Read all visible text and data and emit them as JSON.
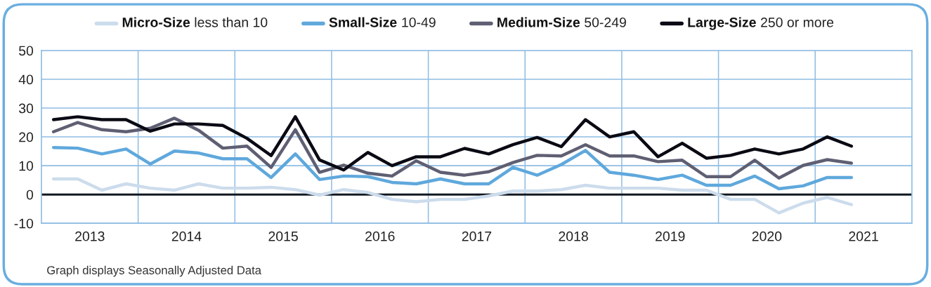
{
  "chart_data": {
    "type": "line",
    "x": [
      2013.125,
      2013.375,
      2013.625,
      2013.875,
      2014.125,
      2014.375,
      2014.625,
      2014.875,
      2015.125,
      2015.375,
      2015.625,
      2015.875,
      2016.125,
      2016.375,
      2016.625,
      2016.875,
      2017.125,
      2017.375,
      2017.625,
      2017.875,
      2018.125,
      2018.375,
      2018.625,
      2018.875,
      2019.125,
      2019.375,
      2019.625,
      2019.875,
      2020.125,
      2020.375,
      2020.625,
      2020.875,
      2021.125,
      2021.375
    ],
    "series": [
      {
        "name": "Micro-Size less than 10",
        "color": "#ccdcec",
        "values": [
          5.4,
          5.4,
          1.5,
          3.7,
          2.2,
          1.5,
          3.7,
          2.2,
          2.2,
          2.5,
          1.7,
          -0.2,
          1.7,
          0.7,
          -1.7,
          -2.5,
          -1.7,
          -1.7,
          -0.5,
          1.2,
          1.2,
          1.7,
          3.2,
          2.2,
          2.2,
          2.2,
          1.5,
          1.5,
          -1.7,
          -1.7,
          -6.4,
          -3.0,
          -1.0,
          -3.5
        ]
      },
      {
        "name": "Small-Size 10-49",
        "color": "#5fa8dc",
        "values": [
          16.3,
          16.1,
          14.1,
          15.8,
          10.6,
          15.1,
          14.4,
          12.4,
          12.4,
          5.9,
          14.1,
          5.2,
          6.4,
          6.2,
          4.2,
          3.7,
          5.4,
          3.7,
          3.7,
          9.4,
          6.7,
          10.4,
          15.3,
          7.7,
          6.7,
          5.2,
          6.7,
          3.2,
          3.2,
          6.4,
          2.0,
          3.0,
          5.9,
          5.9
        ]
      },
      {
        "name": "Medium-Size 50-249",
        "color": "#5f5f73",
        "values": [
          21.8,
          25,
          22.5,
          21.8,
          23,
          26.5,
          22.3,
          16.1,
          16.8,
          9.4,
          22.5,
          7.7,
          10.2,
          7.4,
          6.4,
          11.7,
          7.7,
          6.7,
          7.9,
          11.1,
          13.6,
          13.4,
          17.3,
          13.4,
          13.4,
          11.4,
          11.9,
          6.2,
          6.2,
          11.9,
          5.7,
          10.1,
          12.1,
          10.9
        ]
      },
      {
        "name": "Large-Size 250 or more",
        "color": "#0a0a14",
        "values": [
          26,
          27,
          26,
          26,
          22,
          24.5,
          24.5,
          24,
          19.5,
          13.5,
          27,
          12,
          8.5,
          14.6,
          10,
          13.1,
          13.1,
          16,
          14.1,
          17.3,
          19.8,
          16.6,
          26,
          20,
          21.8,
          13.1,
          17.8,
          12.6,
          13.6,
          15.8,
          14.1,
          15.8,
          20,
          16.8
        ]
      }
    ],
    "xlim": [
      2013,
      2022
    ],
    "xticks": [
      {
        "value": 2013.5,
        "label": "2013"
      },
      {
        "value": 2014,
        "label": null
      },
      {
        "value": 2014.5,
        "label": "2014"
      },
      {
        "value": 2015,
        "label": null
      },
      {
        "value": 2015.5,
        "label": "2015"
      },
      {
        "value": 2016,
        "label": null
      },
      {
        "value": 2016.5,
        "label": "2016"
      },
      {
        "value": 2017,
        "label": null
      },
      {
        "value": 2017.5,
        "label": "2017"
      },
      {
        "value": 2018,
        "label": null
      },
      {
        "value": 2018.5,
        "label": "2018"
      },
      {
        "value": 2019,
        "label": null
      },
      {
        "value": 2019.5,
        "label": "2019"
      },
      {
        "value": 2020,
        "label": null
      },
      {
        "value": 2020.5,
        "label": "2020"
      },
      {
        "value": 2021,
        "label": null
      },
      {
        "value": 2021.5,
        "label": "2021"
      }
    ],
    "ylim": [
      -10,
      50
    ],
    "yticks": [
      -10,
      0,
      10,
      20,
      30,
      40,
      50
    ],
    "ref_lines": [
      {
        "axis": "y",
        "value": 0,
        "color": "#111820"
      }
    ],
    "grid": true,
    "legend": "top",
    "marker": "none",
    "line_style": "solid",
    "annotations": [
      "Graph displays Seasonally Adjusted Data"
    ]
  }
}
